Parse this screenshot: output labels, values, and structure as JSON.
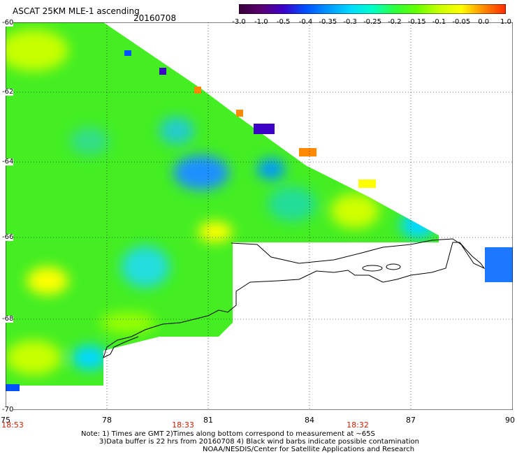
{
  "header": {
    "title": "ASCAT 25KM MLE-1 ascending",
    "date": "20160708"
  },
  "colorbar": {
    "labels": [
      "-3.0",
      "-1.0",
      "-0.5",
      "-0.4",
      "-0.35",
      "-0.3",
      "-0.25",
      "-0.2",
      "-0.15",
      "-0.1",
      "-0.05",
      "0.0",
      "1.0"
    ],
    "colors": [
      "#3a003a",
      "#5a0070",
      "#3c00c8",
      "#0050ff",
      "#0096ff",
      "#00d8ff",
      "#00ffc8",
      "#2cff3c",
      "#66ff00",
      "#c8ff00",
      "#ffff00",
      "#ff8a00",
      "#ff2a00"
    ]
  },
  "map": {
    "lat_labels": [
      "-60",
      "-62",
      "-64",
      "-66",
      "-68",
      "-70"
    ],
    "lon_labels": [
      "75",
      "78",
      "81",
      "84",
      "87",
      "90"
    ],
    "time_labels": [
      "18:53",
      "18:33",
      "18:32"
    ]
  },
  "footer": {
    "note1": "Note: 1) Times are GMT 2)Times along bottom correspond to measurement at ~65S",
    "note2": "3)Data buffer is 22 hrs from 20160708 4) Black wind barbs indicate possible contamination",
    "credit": "NOAA/NESDIS/Center for Satellite Applications and Research"
  }
}
